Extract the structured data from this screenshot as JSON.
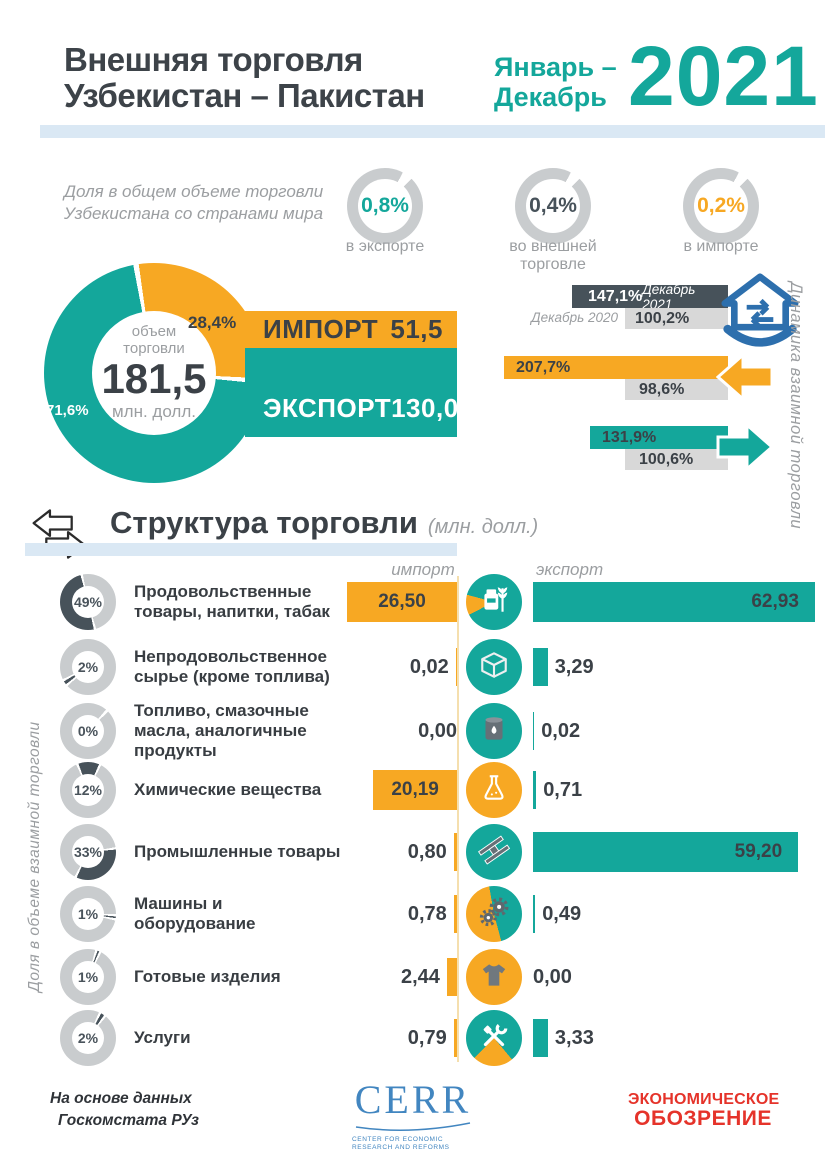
{
  "header": {
    "title_line1": "Внешняя торговля",
    "title_line2": "Узбекистан – Пакистан",
    "period_line1": "Январь –",
    "period_line2": "Декабрь",
    "year": "2021"
  },
  "shares": {
    "caption_line1": "Доля в общем объеме торговли",
    "caption_line2": "Узбекистана со странами мира",
    "items": [
      {
        "value": "0,8%",
        "label": "в экспорте",
        "color": "#14A79B"
      },
      {
        "value": "0,4%",
        "label": "во внешней торговле",
        "color": "#47525A"
      },
      {
        "value": "0,2%",
        "label": "в импорте",
        "color": "#F7A823"
      }
    ]
  },
  "overview": {
    "volume_label": "объем торговли",
    "volume_value": "181,5",
    "volume_unit": "млн. долл.",
    "import_share": "28,4%",
    "export_share": "71,6%",
    "import_share_num": 28.4,
    "export_share_num": 71.6,
    "import_label": "ИМПОРТ",
    "import_value": "51,5",
    "export_label": "ЭКСПОРТ",
    "export_value": "130,0"
  },
  "dynamics": {
    "side_label": "Динамика взаимной торговли",
    "total": {
      "value_2021": "147,1%",
      "label_2021": "Декабрь 2021",
      "value_2020": "100,2%",
      "label_2020": "Декабрь 2020"
    },
    "import_row": {
      "value_2021": "207,7%",
      "value_2020": "98,6%"
    },
    "export_row": {
      "value_2021": "131,9%",
      "value_2020": "100,6%"
    }
  },
  "structure": {
    "title": "Структура торговли",
    "unit": "(млн. долл.)",
    "col_import": "импорт",
    "col_export": "экспорт",
    "side_label": "Доля в объеме  взаимной торговли",
    "rows": [
      {
        "share": "49%",
        "share_num": 49,
        "name": "Продовольственные товары, напитки, табак",
        "import": "26,50",
        "import_num": 26.5,
        "export": "62,93",
        "export_num": 62.93,
        "icon": "food-icon"
      },
      {
        "share": "2%",
        "share_num": 2,
        "name": "Непродовольственное сырье (кроме топлива)",
        "import": "0,02",
        "import_num": 0.02,
        "export": "3,29",
        "export_num": 3.29,
        "icon": "box-icon"
      },
      {
        "share": "0%",
        "share_num": 0,
        "name": "Топливо, смазочные масла, аналогичные продукты",
        "import": "0,00",
        "import_num": 0,
        "export": "0,02",
        "export_num": 0.02,
        "icon": "barrel-icon"
      },
      {
        "share": "12%",
        "share_num": 12,
        "name": "Химические вещества",
        "import": "20,19",
        "import_num": 20.19,
        "export": "0,71",
        "export_num": 0.71,
        "icon": "flask-icon"
      },
      {
        "share": "33%",
        "share_num": 33,
        "name": "Промышленные товары",
        "import": "0,80",
        "import_num": 0.8,
        "export": "59,20",
        "export_num": 59.2,
        "icon": "beam-icon"
      },
      {
        "share": "1%",
        "share_num": 1,
        "name": "Машины и оборудование",
        "import": "0,78",
        "import_num": 0.78,
        "export": "0,49",
        "export_num": 0.49,
        "icon": "gears-icon"
      },
      {
        "share": "1%",
        "share_num": 1,
        "name": "Готовые изделия",
        "import": "2,44",
        "import_num": 2.44,
        "export": "0,00",
        "export_num": 0,
        "icon": "tshirt-icon"
      },
      {
        "share": "2%",
        "share_num": 2,
        "name": "Услуги",
        "import": "0,79",
        "import_num": 0.79,
        "export": "3,33",
        "export_num": 3.33,
        "icon": "tools-icon"
      }
    ]
  },
  "footer": {
    "source_line1": "На основе данных",
    "source_line2": "Госкомстата РУз",
    "cerr": "CERR",
    "cerr_sub_line1": "CENTER FOR ECONOMIC",
    "cerr_sub_line2": "RESEARCH AND REFORMS",
    "magazine_line1": "ЭКОНОМИЧЕСКОЕ",
    "magazine_line2": "ОБОЗРЕНИЕ"
  },
  "colors": {
    "teal": "#14A79B",
    "orange": "#F7A823",
    "slate": "#47525A",
    "text_dark": "#3B4147",
    "gray_bar": "#D8D8D8",
    "ring_gray": "#C9CCCE",
    "light_blue": "#DAE8F4",
    "muted": "#9B9EA1",
    "logo_blue": "#4286C0",
    "house_blue": "#2D6FAD",
    "red": "#E5332A"
  },
  "chart_data": [
    {
      "type": "pie",
      "title": "Объем торговли 181,5 млн. долл.",
      "labels": [
        "Экспорт",
        "Импорт"
      ],
      "values": [
        71.6,
        28.4
      ],
      "absolute_values": {
        "export": 130.0,
        "import": 51.5,
        "total": 181.5
      },
      "unit": "%",
      "colors": [
        "#14A79B",
        "#F7A823"
      ]
    },
    {
      "type": "bar",
      "title": "Доля в общем объеме торговли Узбекистана со странами мира",
      "categories": [
        "в экспорте",
        "во внешней торговле",
        "в импорте"
      ],
      "values": [
        0.8,
        0.4,
        0.2
      ],
      "unit": "%"
    },
    {
      "type": "bar",
      "title": "Динамика взаимной торговли",
      "categories": [
        "Товарооборот",
        "Импорт",
        "Экспорт"
      ],
      "series": [
        {
          "name": "Декабрь 2021",
          "values": [
            147.1,
            207.7,
            131.9
          ]
        },
        {
          "name": "Декабрь 2020",
          "values": [
            100.2,
            98.6,
            100.6
          ]
        }
      ],
      "unit": "%"
    },
    {
      "type": "bar",
      "title": "Структура торговли (млн. долл.)",
      "categories": [
        "Продовольственные товары, напитки, табак",
        "Непродовольственное сырье (кроме топлива)",
        "Топливо, смазочные масла, аналогичные продукты",
        "Химические вещества",
        "Промышленные товары",
        "Машины и оборудование",
        "Готовые изделия",
        "Услуги"
      ],
      "series": [
        {
          "name": "импорт",
          "values": [
            26.5,
            0.02,
            0.0,
            20.19,
            0.8,
            0.78,
            2.44,
            0.79
          ]
        },
        {
          "name": "экспорт",
          "values": [
            62.93,
            3.29,
            0.02,
            0.71,
            59.2,
            0.49,
            0.0,
            3.33
          ]
        },
        {
          "name": "доля в объеме взаимной торговли, %",
          "values": [
            49,
            2,
            0,
            12,
            33,
            1,
            1,
            2
          ]
        }
      ]
    }
  ]
}
